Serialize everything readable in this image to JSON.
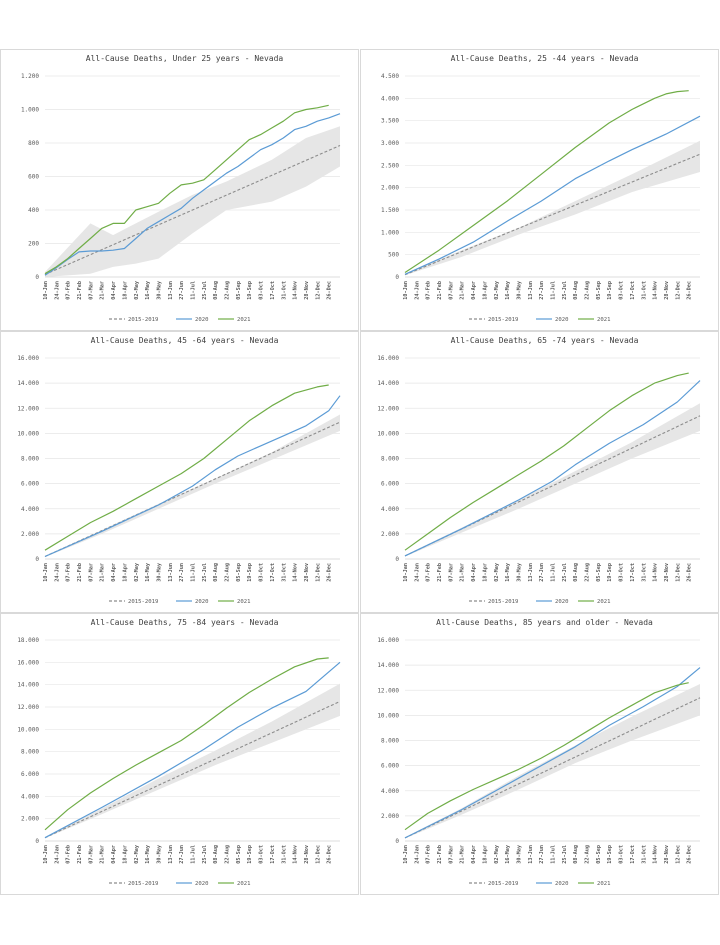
{
  "legend": {
    "baseline": "2015-2019",
    "y2020": "2020",
    "y2021": "2021"
  },
  "colors": {
    "baseline": "#8c8c8c",
    "y2020": "#5b9bd5",
    "y2021": "#70ad47",
    "band": "#e6e6e6",
    "grid": "#e6e6e6"
  },
  "chart_data": [
    {
      "type": "line",
      "title": "All-Cause Deaths, Under 25 years  - Nevada",
      "ylim": [
        0,
        1200
      ],
      "yticks": [
        0,
        200,
        400,
        600,
        800,
        1000,
        1200
      ],
      "ytick_labels": [
        "0",
        "200",
        "400",
        "600",
        "800",
        "1.000",
        "1.200"
      ],
      "x_labels": [
        "10-Jan",
        "24-Jan",
        "07-Feb",
        "21-Feb",
        "07-Mar",
        "21-Mar",
        "04-Apr",
        "18-Apr",
        "02-May",
        "16-May",
        "30-May",
        "13-Jun",
        "27-Jun",
        "11-Jul",
        "25-Jul",
        "08-Aug",
        "22-Aug",
        "05-Sep",
        "19-Sep",
        "03-Oct",
        "17-Oct",
        "31-Oct",
        "14-Nov",
        "28-Nov",
        "12-Dec",
        "26-Dec"
      ],
      "series": [
        {
          "name": "2015-2019",
          "x": [
            0,
            52
          ],
          "y": [
            15,
            785
          ]
        },
        {
          "name": "2020",
          "x": [
            0,
            2,
            4,
            6,
            8,
            10,
            12,
            14,
            16,
            18,
            20,
            22,
            24,
            26,
            28,
            30,
            32,
            34,
            36,
            38,
            40,
            42,
            44,
            46,
            48,
            50,
            52
          ],
          "y": [
            10,
            55,
            105,
            150,
            155,
            155,
            160,
            170,
            230,
            290,
            330,
            370,
            410,
            470,
            520,
            570,
            620,
            660,
            710,
            760,
            790,
            830,
            880,
            900,
            930,
            950,
            975
          ]
        },
        {
          "name": "2021",
          "x": [
            0,
            2,
            4,
            6,
            8,
            10,
            12,
            14,
            16,
            18,
            20,
            22,
            24,
            26,
            28,
            30,
            32,
            34,
            36,
            38,
            40,
            42,
            44,
            46,
            48,
            50
          ],
          "y": [
            20,
            60,
            110,
            170,
            230,
            290,
            320,
            320,
            400,
            420,
            440,
            500,
            550,
            560,
            580,
            640,
            700,
            760,
            820,
            850,
            890,
            930,
            980,
            1000,
            1010,
            1025
          ]
        }
      ],
      "band": {
        "x": [
          0,
          8,
          12,
          16,
          20,
          26,
          32,
          40,
          46,
          52
        ],
        "lower": [
          0,
          20,
          60,
          80,
          110,
          260,
          400,
          450,
          540,
          660
        ],
        "upper": [
          30,
          320,
          250,
          320,
          390,
          490,
          570,
          700,
          830,
          900
        ]
      }
    },
    {
      "type": "line",
      "title": "All-Cause Deaths, 25 -44 years  - Nevada",
      "ylim": [
        0,
        4500
      ],
      "yticks": [
        0,
        500,
        1000,
        1500,
        2000,
        2500,
        3000,
        3500,
        4000,
        4500
      ],
      "ytick_labels": [
        "0",
        "500",
        "1.000",
        "1.500",
        "2.000",
        "2.500",
        "3.000",
        "3.500",
        "4.000",
        "4.500"
      ],
      "x_labels": [
        "10-Jan",
        "24-Jan",
        "07-Feb",
        "21-Feb",
        "07-Mar",
        "21-Mar",
        "04-Apr",
        "18-Apr",
        "02-May",
        "16-May",
        "30-May",
        "13-Jun",
        "27-Jun",
        "11-Jul",
        "25-Jul",
        "08-Aug",
        "22-Aug",
        "05-Sep",
        "19-Sep",
        "03-Oct",
        "17-Oct",
        "31-Oct",
        "14-Nov",
        "28-Nov",
        "12-Dec",
        "26-Dec"
      ],
      "series": [
        {
          "name": "2015-2019",
          "x": [
            0,
            52
          ],
          "y": [
            50,
            2750
          ]
        },
        {
          "name": "2020",
          "x": [
            0,
            6,
            12,
            18,
            24,
            30,
            36,
            40,
            46,
            52
          ],
          "y": [
            60,
            400,
            780,
            1250,
            1700,
            2200,
            2600,
            2850,
            3200,
            3600
          ]
        },
        {
          "name": "2021",
          "x": [
            0,
            6,
            12,
            18,
            24,
            30,
            36,
            40,
            44,
            46,
            48,
            50
          ],
          "y": [
            100,
            600,
            1150,
            1700,
            2300,
            2900,
            3450,
            3750,
            4000,
            4100,
            4150,
            4170
          ]
        }
      ],
      "band": {
        "x": [
          0,
          10,
          20,
          30,
          40,
          52
        ],
        "lower": [
          40,
          450,
          950,
          1400,
          1900,
          2350
        ],
        "upper": [
          70,
          600,
          1100,
          1700,
          2300,
          3050
        ]
      }
    },
    {
      "type": "line",
      "title": "All-Cause Deaths, 45 -64 years  - Nevada",
      "ylim": [
        0,
        16000
      ],
      "yticks": [
        0,
        2000,
        4000,
        6000,
        8000,
        10000,
        12000,
        14000,
        16000
      ],
      "ytick_labels": [
        "0",
        "2.000",
        "4.000",
        "6.000",
        "8.000",
        "10.000",
        "12.000",
        "14.000",
        "16.000"
      ],
      "x_labels": [
        "10-Jan",
        "24-Jan",
        "07-Feb",
        "21-Feb",
        "07-Mar",
        "21-Mar",
        "04-Apr",
        "18-Apr",
        "02-May",
        "16-May",
        "30-May",
        "13-Jun",
        "27-Jun",
        "11-Jul",
        "25-Jul",
        "08-Aug",
        "22-Aug",
        "05-Sep",
        "19-Sep",
        "03-Oct",
        "17-Oct",
        "31-Oct",
        "14-Nov",
        "28-Nov",
        "12-Dec",
        "26-Dec"
      ],
      "series": [
        {
          "name": "2015-2019",
          "x": [
            0,
            52
          ],
          "y": [
            200,
            10900
          ]
        },
        {
          "name": "2020",
          "x": [
            0,
            10,
            20,
            26,
            30,
            34,
            38,
            42,
            46,
            50,
            52
          ],
          "y": [
            200,
            2200,
            4300,
            5800,
            7100,
            8200,
            9000,
            9800,
            10600,
            11800,
            13000
          ]
        },
        {
          "name": "2021",
          "x": [
            0,
            4,
            8,
            12,
            16,
            20,
            24,
            28,
            32,
            36,
            40,
            44,
            48,
            50
          ],
          "y": [
            700,
            1800,
            2900,
            3800,
            4800,
            5800,
            6800,
            8000,
            9500,
            11000,
            12200,
            13200,
            13700,
            13850
          ]
        }
      ],
      "band": {
        "x": [
          0,
          10,
          20,
          30,
          40,
          52
        ],
        "lower": [
          150,
          2000,
          4000,
          6000,
          7900,
          10200
        ],
        "upper": [
          250,
          2300,
          4400,
          6400,
          8500,
          11500
        ]
      }
    },
    {
      "type": "line",
      "title": "All-Cause Deaths, 65 -74 years  - Nevada",
      "ylim": [
        0,
        16000
      ],
      "yticks": [
        0,
        2000,
        4000,
        6000,
        8000,
        10000,
        12000,
        14000,
        16000
      ],
      "ytick_labels": [
        "0",
        "2.000",
        "4.000",
        "6.000",
        "8.000",
        "10.000",
        "12.000",
        "14.000",
        "16.000"
      ],
      "x_labels": [
        "10-Jan",
        "24-Jan",
        "07-Feb",
        "21-Feb",
        "07-Mar",
        "21-Mar",
        "04-Apr",
        "18-Apr",
        "02-May",
        "16-May",
        "30-May",
        "13-Jun",
        "27-Jun",
        "11-Jul",
        "25-Jul",
        "08-Aug",
        "22-Aug",
        "05-Sep",
        "19-Sep",
        "03-Oct",
        "17-Oct",
        "31-Oct",
        "14-Nov",
        "28-Nov",
        "12-Dec",
        "26-Dec"
      ],
      "series": [
        {
          "name": "2015-2019",
          "x": [
            0,
            52
          ],
          "y": [
            250,
            11400
          ]
        },
        {
          "name": "2020",
          "x": [
            0,
            10,
            20,
            26,
            30,
            36,
            42,
            48,
            52
          ],
          "y": [
            250,
            2400,
            4700,
            6200,
            7500,
            9200,
            10700,
            12500,
            14200
          ]
        },
        {
          "name": "2021",
          "x": [
            0,
            4,
            8,
            12,
            16,
            20,
            24,
            28,
            32,
            36,
            40,
            44,
            48,
            50
          ],
          "y": [
            700,
            2000,
            3300,
            4500,
            5600,
            6700,
            7800,
            9000,
            10400,
            11800,
            13000,
            14000,
            14600,
            14800
          ]
        }
      ],
      "band": {
        "x": [
          0,
          10,
          20,
          30,
          40,
          52
        ],
        "lower": [
          200,
          2100,
          4000,
          6000,
          8000,
          10200
        ],
        "upper": [
          300,
          2500,
          4700,
          7000,
          9300,
          12400
        ]
      }
    },
    {
      "type": "line",
      "title": "All-Cause Deaths, 75 -84 years  - Nevada",
      "ylim": [
        0,
        18000
      ],
      "yticks": [
        0,
        2000,
        4000,
        6000,
        8000,
        10000,
        12000,
        14000,
        16000,
        18000
      ],
      "ytick_labels": [
        "0",
        "2.000",
        "4.000",
        "6.000",
        "8.000",
        "10.000",
        "12.000",
        "14.000",
        "16.000",
        "18.000"
      ],
      "x_labels": [
        "10-Jan",
        "24-Jan",
        "07-Feb",
        "21-Feb",
        "07-Mar",
        "21-Mar",
        "04-Apr",
        "18-Apr",
        "02-May",
        "16-May",
        "30-May",
        "13-Jun",
        "27-Jun",
        "11-Jul",
        "25-Jul",
        "08-Aug",
        "22-Aug",
        "05-Sep",
        "19-Sep",
        "03-Oct",
        "17-Oct",
        "31-Oct",
        "14-Nov",
        "28-Nov",
        "12-Dec",
        "26-Dec"
      ],
      "series": [
        {
          "name": "2015-2019",
          "x": [
            0,
            52
          ],
          "y": [
            300,
            12500
          ]
        },
        {
          "name": "2020",
          "x": [
            0,
            10,
            20,
            28,
            34,
            40,
            46,
            52
          ],
          "y": [
            300,
            3000,
            5800,
            8200,
            10200,
            11900,
            13400,
            16000
          ]
        },
        {
          "name": "2021",
          "x": [
            0,
            4,
            8,
            12,
            16,
            20,
            24,
            28,
            32,
            36,
            40,
            44,
            48,
            50
          ],
          "y": [
            1000,
            2800,
            4300,
            5600,
            6800,
            7900,
            9000,
            10400,
            11900,
            13300,
            14500,
            15600,
            16300,
            16400
          ]
        }
      ],
      "band": {
        "x": [
          0,
          10,
          20,
          30,
          40,
          52
        ],
        "lower": [
          250,
          2400,
          4600,
          6800,
          8800,
          11200
        ],
        "upper": [
          350,
          2900,
          5600,
          8100,
          10700,
          14100
        ]
      }
    },
    {
      "type": "line",
      "title": "All-Cause Deaths, 85 years and older   - Nevada",
      "ylim": [
        0,
        16000
      ],
      "yticks": [
        0,
        2000,
        4000,
        6000,
        8000,
        10000,
        12000,
        14000,
        16000
      ],
      "ytick_labels": [
        "0",
        "2.000",
        "4.000",
        "6.000",
        "8.000",
        "10.000",
        "12.000",
        "14.000",
        "16.000"
      ],
      "x_labels": [
        "10-Jan",
        "24-Jan",
        "07-Feb",
        "21-Feb",
        "07-Mar",
        "21-Mar",
        "04-Apr",
        "18-Apr",
        "02-May",
        "16-May",
        "30-May",
        "13-Jun",
        "27-Jun",
        "11-Jul",
        "25-Jul",
        "08-Aug",
        "22-Aug",
        "05-Sep",
        "19-Sep",
        "03-Oct",
        "17-Oct",
        "31-Oct",
        "14-Nov",
        "28-Nov",
        "12-Dec",
        "26-Dec"
      ],
      "series": [
        {
          "name": "2015-2019",
          "x": [
            0,
            52
          ],
          "y": [
            250,
            11400
          ]
        },
        {
          "name": "2020",
          "x": [
            0,
            10,
            20,
            30,
            36,
            42,
            48,
            52
          ],
          "y": [
            250,
            2500,
            5000,
            7500,
            9200,
            10700,
            12300,
            13800
          ]
        },
        {
          "name": "2021",
          "x": [
            0,
            4,
            8,
            12,
            16,
            20,
            24,
            28,
            32,
            36,
            40,
            44,
            48,
            50
          ],
          "y": [
            900,
            2200,
            3200,
            4100,
            4900,
            5700,
            6600,
            7600,
            8700,
            9800,
            10800,
            11800,
            12400,
            12600
          ]
        }
      ],
      "band": {
        "x": [
          0,
          10,
          20,
          30,
          40,
          52
        ],
        "lower": [
          200,
          2100,
          4100,
          6200,
          8000,
          10000
        ],
        "upper": [
          300,
          2600,
          5200,
          7600,
          9900,
          12500
        ]
      }
    }
  ]
}
